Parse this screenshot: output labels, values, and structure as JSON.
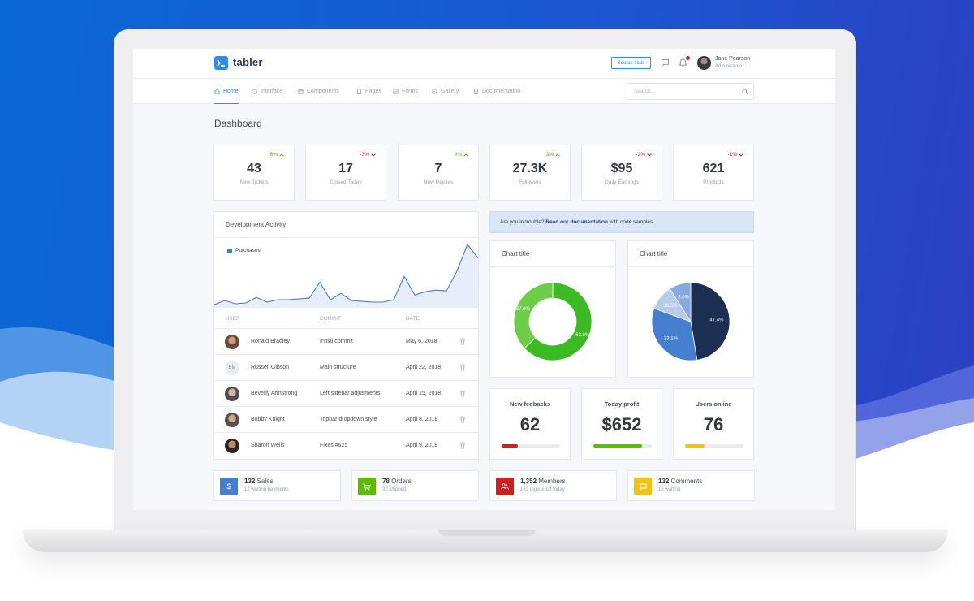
{
  "app": {
    "logo_text": "tabler"
  },
  "header": {
    "source_button": "Source code",
    "user_name": "Jane Pearson",
    "user_role": "Administrator"
  },
  "nav": {
    "items": [
      {
        "label": "Home",
        "icon": "home-icon",
        "active": true
      },
      {
        "label": "Interface",
        "icon": "box-icon",
        "active": false
      },
      {
        "label": "Components",
        "icon": "calendar-icon",
        "active": false
      },
      {
        "label": "Pages",
        "icon": "file-icon",
        "active": false
      },
      {
        "label": "Forms",
        "icon": "check-square-icon",
        "active": false
      },
      {
        "label": "Gallery",
        "icon": "image-icon",
        "active": false
      },
      {
        "label": "Documentation",
        "icon": "file-text-icon",
        "active": false
      }
    ],
    "search_placeholder": "Search..."
  },
  "page_title": "Dashboard",
  "stats": [
    {
      "delta": "6%",
      "direction": "up",
      "value": "43",
      "label": "New Tickets"
    },
    {
      "delta": "-3%",
      "direction": "down",
      "value": "17",
      "label": "Closed Today"
    },
    {
      "delta": "9%",
      "direction": "up",
      "value": "7",
      "label": "New Replies"
    },
    {
      "delta": "3%",
      "direction": "up",
      "value": "27.3K",
      "label": "Followers"
    },
    {
      "delta": "-2%",
      "direction": "down",
      "value": "$95",
      "label": "Daily Earnings"
    },
    {
      "delta": "-1%",
      "direction": "down",
      "value": "621",
      "label": "Products"
    }
  ],
  "activity": {
    "title": "Development Activity",
    "legend": "Purchases",
    "columns": [
      "USER",
      "COMMIT",
      "DATE"
    ],
    "rows": [
      {
        "user": "Ronald Bradley",
        "commit": "Initial commit",
        "date": "May 6, 2018",
        "initials": ""
      },
      {
        "user": "Russell Gibson",
        "commit": "Main structure",
        "date": "April 22, 2018",
        "initials": "BM"
      },
      {
        "user": "Beverly Armstrong",
        "commit": "Left sidebar adjusments",
        "date": "April 15, 2018",
        "initials": ""
      },
      {
        "user": "Bobby Knight",
        "commit": "Topbar dropdown style",
        "date": "April 8, 2018",
        "initials": ""
      },
      {
        "user": "Sharon Wells",
        "commit": "Fixes #625",
        "date": "April 9, 2018",
        "initials": ""
      }
    ]
  },
  "alert": {
    "prefix": "Are you in trouble?",
    "link": "Read our documentation",
    "suffix": "with code samples."
  },
  "chart_data": [
    {
      "type": "area",
      "series": [
        {
          "name": "Purchases",
          "values": [
            0,
            5,
            1,
            2,
            9,
            3,
            6,
            6,
            7,
            8,
            28,
            6,
            14,
            5,
            4,
            3,
            3,
            6,
            35,
            12,
            16,
            18,
            17,
            42,
            75,
            58
          ]
        }
      ],
      "color": "#467fcf"
    },
    {
      "type": "pie",
      "variant": "donut",
      "title": "Chart title",
      "labels": [
        "63.0%",
        "37.0%"
      ],
      "values": [
        63.0,
        37.0
      ],
      "colors": [
        "#3cba24",
        "#6ecd46"
      ]
    },
    {
      "type": "pie",
      "title": "Chart title",
      "labels": [
        "47.4%",
        "33.1%",
        "10.5%",
        "9.0%"
      ],
      "values": [
        47.4,
        33.1,
        10.5,
        9.0
      ],
      "colors": [
        "#1b2f52",
        "#467fcf",
        "#b7cce9",
        "#87a9de"
      ]
    }
  ],
  "kpis": [
    {
      "label": "New fedbacks",
      "value": "62",
      "progress": 0.28,
      "color": "#cd201f"
    },
    {
      "label": "Today profit",
      "value": "$652",
      "progress": 0.84,
      "color": "#5eba00"
    },
    {
      "label": "Users online",
      "value": "76",
      "progress": 0.34,
      "color": "#f1c40f"
    }
  ],
  "small_stats": [
    {
      "value": "132",
      "label": "Sales",
      "sub": "12 waiting payments",
      "icon": "dollar-icon",
      "color": "#467fcf"
    },
    {
      "value": "78",
      "label": "Orders",
      "sub": "32 shipped",
      "icon": "cart-icon",
      "color": "#5eba00"
    },
    {
      "value": "1,352",
      "label": "Members",
      "sub": "163 registered today",
      "icon": "users-icon",
      "color": "#cd201f"
    },
    {
      "value": "132",
      "label": "Comments",
      "sub": "16 waiting",
      "icon": "message-icon",
      "color": "#f1c40f"
    }
  ]
}
